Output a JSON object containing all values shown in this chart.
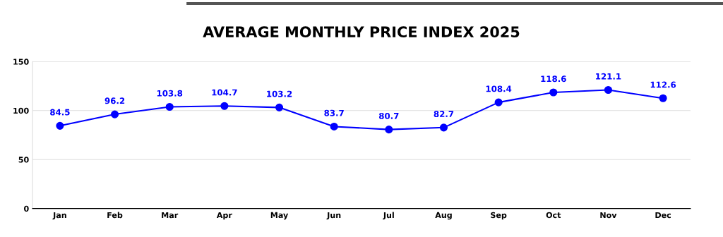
{
  "chart_data": {
    "type": "line",
    "title": "AVERAGE MONTHLY PRICE INDEX 2025",
    "categories": [
      "Jan",
      "Feb",
      "Mar",
      "Apr",
      "May",
      "Jun",
      "Jul",
      "Aug",
      "Sep",
      "Oct",
      "Nov",
      "Dec"
    ],
    "series": [
      {
        "color": "#0000ff",
        "values": [
          84.5,
          96.2,
          103.8,
          104.7,
          103.2,
          83.7,
          80.7,
          82.7,
          108.4,
          118.6,
          121.1,
          112.6
        ]
      }
    ],
    "ylim": [
      0,
      150
    ],
    "yticks": [
      0,
      50,
      100,
      150
    ],
    "grid": "y",
    "marker": "circle",
    "line_style": "solid",
    "data_labels": true
  }
}
